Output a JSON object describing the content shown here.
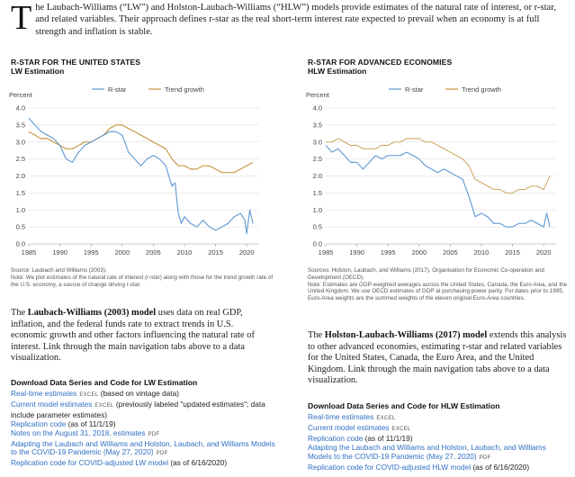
{
  "intro": {
    "dropcap": "T",
    "text": "he Laubach-Williams (“LW”) and Holston-Laubach-Williams (“HLW”) models provide estimates of the natural rate of interest, or r-star, and related variables. Their approach defines r-star as the real short-term interest rate expected to prevail when an economy is at full strength and inflation is stable."
  },
  "left": {
    "chart_title": "R-STAR FOR THE UNITED STATES",
    "chart_subtitle": "LW Estimation",
    "source": "Source: Laubach and Williams (2003).",
    "note": "Note: We plot estimates of the natural rate of interest (r-star) along with those for the trend growth rate of the U.S. economy, a source of change driving r-star.",
    "model_link": "Laubach-Williams (2003) model",
    "model_text_pre": "The ",
    "model_text_post": " uses data on real GDP, inflation, and the federal funds rate to extract trends in U.S. economic growth and other factors influencing the natural rate of interest. Link through the main navigation tabs above to a data visualization.",
    "download_heading": "Download Data Series and Code for LW Estimation",
    "downloads": [
      {
        "link": "Real-time estimates",
        "tag": "EXCEL",
        "suffix": " (based on vintage data)"
      },
      {
        "link": "Current model estimates",
        "tag": "EXCEL",
        "suffix": " (previously labeled \"updated estimates\"; data include parameter estimates)"
      },
      {
        "link": "Replication code",
        "tag": "",
        "suffix": " (as of 11/1/19)"
      },
      {
        "link": "Notes on the August 31, 2018, estimates",
        "tag": "PDF",
        "suffix": ""
      },
      {
        "link": "Adapting the Laubach and Williams and Holston, Laubach, and Williams Models to the COVID-19 Pandemic (May 27, 2020)",
        "tag": "PDF",
        "suffix": ""
      },
      {
        "link": "Replication code for COVID-adjusted LW model",
        "tag": "",
        "suffix": " (as of 6/16/2020)"
      }
    ]
  },
  "right": {
    "chart_title": "R-STAR FOR ADVANCED ECONOMIES",
    "chart_subtitle": "HLW Estimation",
    "source": "Sources: Holston, Laubach, and Williams (2017), Organisation for Economic Co-operation and Development (OECD).",
    "note": "Note: Estimates are GDP-weighted averages across the United States, Canada, the Euro Area, and the United Kingdom. We use OECD estimates of GDP at purchasing power parity. For dates prior to 1995, Euro-Area weights are the summed weights of the eleven original Euro-Area countries.",
    "model_link": "Holston-Laubach-Williams (2017) model",
    "model_text_pre": "The ",
    "model_text_post": " extends this analysis to other advanced economies, estimating r-star and related variables for the United States, Canada, the Euro Area, and the United Kingdom. Link through the main navigation tabs above to a data visualization.",
    "download_heading": "Download Data Series and Code for HLW Estimation",
    "downloads": [
      {
        "link": "Real-time estimates",
        "tag": "EXCEL",
        "suffix": ""
      },
      {
        "link": "Current model estimates",
        "tag": "EXCEL",
        "suffix": ""
      },
      {
        "link": "Replication code",
        "tag": "",
        "suffix": " (as of 11/1/19)"
      },
      {
        "link": "Adapting the Laubach and Williams and Holston, Laubach, and Williams Models to the COVID-19 Pandemic (May 27, 2020)",
        "tag": "PDF",
        "suffix": ""
      },
      {
        "link": "Replication code for COVID-adjusted HLW model",
        "tag": "",
        "suffix": " (as of 6/16/2020)"
      }
    ]
  },
  "colors": {
    "rstar": "#6a9fd4",
    "trend": "#c89a4a",
    "link": "#2f6fc4",
    "grid": "#d8d8d8"
  },
  "chart_data": [
    {
      "type": "line",
      "ylabel": "Percent",
      "ylim": [
        0,
        4.0
      ],
      "yticks": [
        "0.0",
        "0.5",
        "1.0",
        "1.5",
        "2.0",
        "2.5",
        "3.0",
        "3.5",
        "4.0"
      ],
      "xlim": [
        1985,
        2022
      ],
      "xticks": [
        "1985",
        "1990",
        "1995",
        "2000",
        "2005",
        "2010",
        "2015",
        "2020"
      ],
      "legend": "top",
      "series": [
        {
          "name": "R-star",
          "x": [
            1985,
            1986,
            1987,
            1988,
            1989,
            1990,
            1991,
            1992,
            1993,
            1994,
            1995,
            1996,
            1997,
            1998,
            1999,
            2000,
            2001,
            2002,
            2003,
            2004,
            2005,
            2006,
            2007,
            2008,
            2008.5,
            2009,
            2009.5,
            2010,
            2011,
            2012,
            2013,
            2014,
            2015,
            2016,
            2017,
            2018,
            2019,
            2019.7,
            2020,
            2020.5,
            2021
          ],
          "y": [
            3.7,
            3.5,
            3.3,
            3.2,
            3.1,
            2.9,
            2.5,
            2.4,
            2.7,
            2.9,
            3.0,
            3.1,
            3.2,
            3.3,
            3.3,
            3.2,
            2.7,
            2.5,
            2.3,
            2.5,
            2.6,
            2.5,
            2.3,
            1.7,
            1.8,
            0.9,
            0.6,
            0.8,
            0.6,
            0.5,
            0.7,
            0.5,
            0.4,
            0.5,
            0.6,
            0.8,
            0.9,
            0.7,
            0.3,
            1.0,
            0.6
          ]
        },
        {
          "name": "Trend growth",
          "x": [
            1985,
            1986,
            1987,
            1988,
            1989,
            1990,
            1991,
            1992,
            1993,
            1994,
            1995,
            1996,
            1997,
            1998,
            1999,
            2000,
            2001,
            2002,
            2003,
            2004,
            2005,
            2006,
            2007,
            2008,
            2009,
            2010,
            2011,
            2012,
            2013,
            2014,
            2015,
            2016,
            2017,
            2018,
            2019,
            2020,
            2021
          ],
          "y": [
            3.3,
            3.2,
            3.1,
            3.1,
            3.0,
            2.9,
            2.8,
            2.8,
            2.9,
            3.0,
            3.0,
            3.1,
            3.2,
            3.4,
            3.5,
            3.5,
            3.4,
            3.3,
            3.2,
            3.1,
            3.0,
            2.9,
            2.8,
            2.5,
            2.3,
            2.3,
            2.2,
            2.2,
            2.3,
            2.3,
            2.2,
            2.1,
            2.1,
            2.1,
            2.2,
            2.3,
            2.4
          ]
        }
      ]
    },
    {
      "type": "line",
      "ylabel": "Percent",
      "ylim": [
        0,
        4.0
      ],
      "yticks": [
        "0.0",
        "0.5",
        "1.0",
        "1.5",
        "2.0",
        "2.5",
        "3.0",
        "3.5",
        "4.0"
      ],
      "xlim": [
        1985,
        2022
      ],
      "xticks": [
        "1985",
        "1990",
        "1995",
        "2000",
        "2005",
        "2010",
        "2015",
        "2020"
      ],
      "legend": "top",
      "series": [
        {
          "name": "R-star",
          "x": [
            1985,
            1986,
            1987,
            1988,
            1989,
            1990,
            1991,
            1992,
            1993,
            1994,
            1995,
            1996,
            1997,
            1998,
            1999,
            2000,
            2001,
            2002,
            2003,
            2004,
            2005,
            2006,
            2007,
            2008,
            2009,
            2010,
            2011,
            2012,
            2013,
            2014,
            2015,
            2016,
            2017,
            2018,
            2019,
            2020,
            2020.5,
            2021
          ],
          "y": [
            2.9,
            2.7,
            2.8,
            2.6,
            2.4,
            2.4,
            2.2,
            2.4,
            2.6,
            2.5,
            2.6,
            2.6,
            2.6,
            2.7,
            2.6,
            2.5,
            2.3,
            2.2,
            2.1,
            2.2,
            2.1,
            2.0,
            1.9,
            1.4,
            0.8,
            0.9,
            0.8,
            0.6,
            0.6,
            0.5,
            0.5,
            0.6,
            0.6,
            0.7,
            0.6,
            0.5,
            0.9,
            0.5
          ]
        },
        {
          "name": "Trend growth",
          "x": [
            1985,
            1986,
            1987,
            1988,
            1989,
            1990,
            1991,
            1992,
            1993,
            1994,
            1995,
            1996,
            1997,
            1998,
            1999,
            2000,
            2001,
            2002,
            2003,
            2004,
            2005,
            2006,
            2007,
            2008,
            2009,
            2010,
            2011,
            2012,
            2013,
            2014,
            2015,
            2016,
            2017,
            2018,
            2019,
            2020,
            2021
          ],
          "y": [
            3.0,
            3.0,
            3.1,
            3.0,
            2.9,
            2.9,
            2.8,
            2.8,
            2.8,
            2.9,
            2.9,
            3.0,
            3.0,
            3.1,
            3.1,
            3.1,
            3.0,
            3.0,
            2.9,
            2.8,
            2.7,
            2.6,
            2.5,
            2.3,
            1.9,
            1.8,
            1.7,
            1.6,
            1.6,
            1.5,
            1.5,
            1.6,
            1.6,
            1.7,
            1.7,
            1.6,
            2.0
          ]
        }
      ]
    }
  ]
}
